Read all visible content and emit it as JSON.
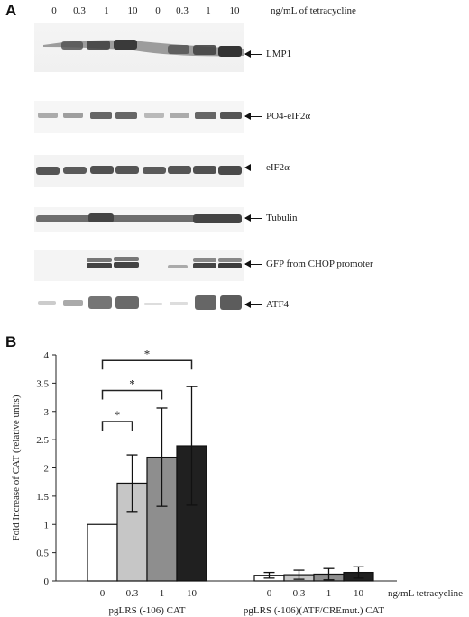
{
  "panel_a": {
    "letter": "A",
    "concentrations": [
      "0",
      "0.3",
      "1",
      "10",
      "0",
      "0.3",
      "1",
      "10"
    ],
    "concentration_units": "ng/mL of tetracycline",
    "blots": [
      {
        "label": "LMP1"
      },
      {
        "label": "PO4-eIF2α"
      },
      {
        "label": "eIF2α"
      },
      {
        "label": "Tubulin"
      },
      {
        "label": "GFP from CHOP promoter"
      },
      {
        "label": "ATF4"
      }
    ]
  },
  "panel_b": {
    "letter": "B",
    "significance_marker": "*",
    "x_units": "ng/mL tetracycline",
    "colors": {
      "0": "#ffffff",
      "0.3": "#c6c6c6",
      "1": "#8e8e8e",
      "10": "#202020"
    }
  },
  "chart_data": {
    "type": "bar",
    "ylabel": "Fold Increase of CAT (relative units)",
    "xlabel": "ng/mL tetracycline",
    "ylim": [
      0,
      4
    ],
    "yticks": [
      0,
      0.5,
      1,
      1.5,
      2,
      2.5,
      3,
      3.5,
      4
    ],
    "series_order": [
      "0",
      "0.3",
      "1",
      "10"
    ],
    "groups": [
      {
        "name": "pgLRS (-106) CAT",
        "values": [
          1.0,
          1.73,
          2.19,
          2.39
        ],
        "errors": [
          0,
          0.5,
          0.87,
          1.05
        ]
      },
      {
        "name": "pgLRS (-106)(ATF/CREmut.) CAT",
        "values": [
          0.1,
          0.11,
          0.12,
          0.15
        ],
        "errors": [
          0.05,
          0.08,
          0.1,
          0.1
        ]
      }
    ],
    "significance": [
      {
        "from": "0",
        "to": "0.3",
        "label": "*"
      },
      {
        "from": "0",
        "to": "1",
        "label": "*"
      },
      {
        "from": "0",
        "to": "10",
        "label": "*"
      }
    ]
  }
}
